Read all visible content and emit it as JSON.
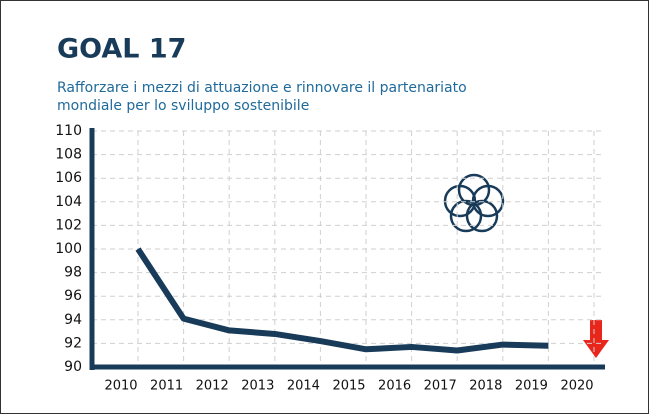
{
  "chart_data": {
    "type": "line",
    "title": "GOAL 17",
    "subtitle": [
      "Rafforzare i mezzi di attuazione e rinnovare il partenariato",
      "mondiale per lo sviluppo sostenibile"
    ],
    "categories": [
      "2010",
      "2011",
      "2012",
      "2013",
      "2014",
      "2015",
      "2016",
      "2017",
      "2018",
      "2019",
      "2020"
    ],
    "series": [
      {
        "name": "Goal 17",
        "color": "#183b59",
        "values": [
          100,
          94.1,
          93.1,
          92.8,
          92.2,
          91.5,
          91.7,
          91.4,
          91.9,
          91.8,
          null
        ]
      }
    ],
    "ylim": [
      90,
      110
    ],
    "yticks": [
      90,
      92,
      94,
      96,
      98,
      100,
      102,
      104,
      106,
      108,
      110
    ],
    "grid": true
  }
}
